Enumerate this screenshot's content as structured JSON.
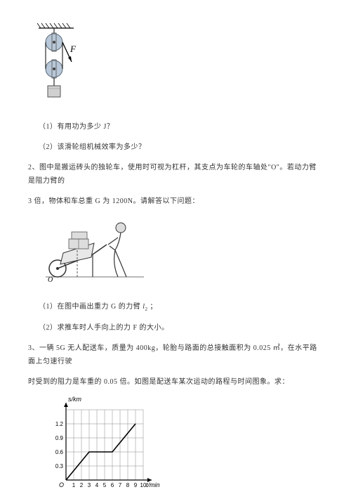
{
  "pulley": {
    "force_label": "F"
  },
  "q1": {
    "part1": "（1）有用功为多少 J？",
    "part2": "（2）该滑轮组机械效率为多少？"
  },
  "q2": {
    "intro_a": "2、图中是搬运砖头的独轮车，使用时可视为杠杆，其支点为车轮的车轴处\"O\"。若动力臂是阻力臂的",
    "intro_b": "3 倍，物体和车总重 G 为 1200N。请解答以下问题：",
    "part1_pre": "（1）在图中画出重力 G 的力臂 ",
    "part1_var": "l",
    "part1_sub": "2",
    "part1_post": " ；",
    "part2": "（2）求推车时人手向上的力 F 的大小。",
    "fig": {
      "O": "O"
    }
  },
  "q3": {
    "intro_a": "3、一辆 5G 无人配送车，质量为 400kg，轮胎与路面的总接触面积为 0.025 ㎡，在水平路面上匀速行驶",
    "intro_b": "时受到的阻力是车重的 0.05 倍。如图是配送车某次运动的路程与时间图象。求：",
    "chart": {
      "ylabel": "s/km",
      "xlabel": "t/min",
      "origin": "O",
      "x_ticks": [
        "1",
        "2",
        "3",
        "4",
        "5",
        "6",
        "7",
        "8",
        "9",
        "10"
      ],
      "y_ticks": [
        "0.3",
        "0.6",
        "0.9",
        "1.2"
      ],
      "y_top": "1.5",
      "grid_color": "#888888",
      "line_color": "#000000",
      "x_max": 10,
      "y_max": 1.5,
      "points": [
        [
          0,
          0
        ],
        [
          3,
          0.6
        ],
        [
          6,
          0.6
        ],
        [
          9,
          1.2
        ]
      ]
    }
  }
}
